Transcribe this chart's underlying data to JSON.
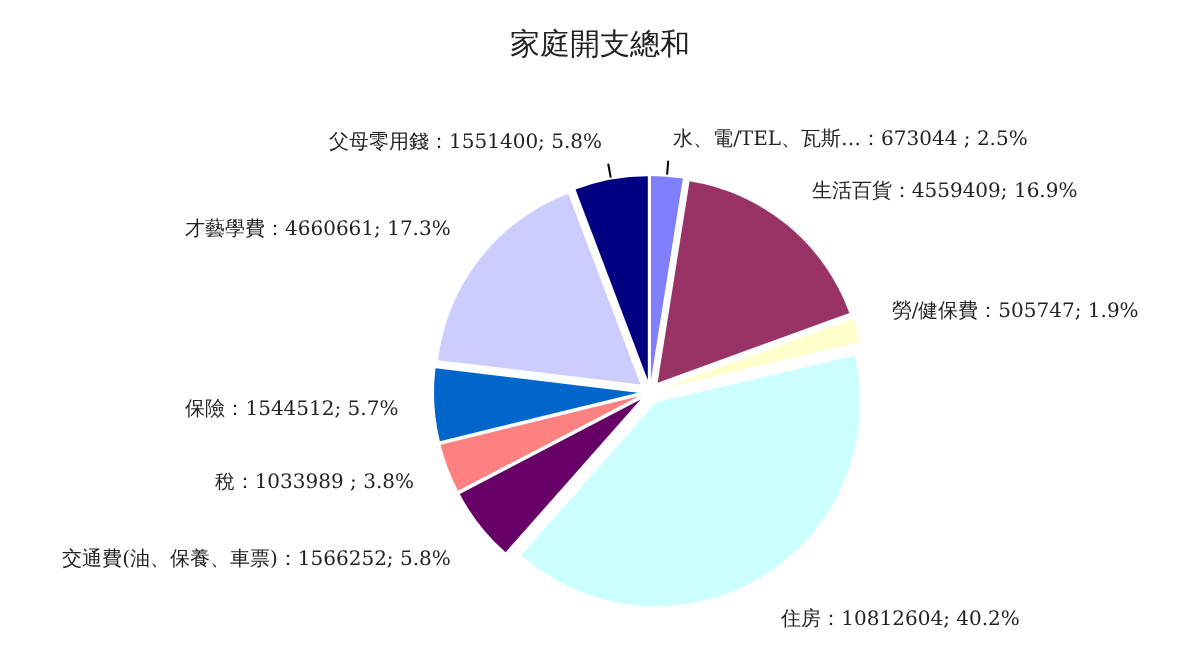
{
  "chart_data": {
    "type": "pie",
    "title": "家庭開支總和",
    "categories": [
      "水、電/TEL、瓦斯…",
      "生活百貨",
      "勞/健保費",
      "住房",
      "交通費(油、保養、車票)",
      "稅",
      "保險",
      "才藝學費",
      "父母零用錢"
    ],
    "values": [
      673044,
      4559409,
      505747,
      10812604,
      1566252,
      1033989,
      1544512,
      4660661,
      1551400
    ],
    "value_labels": [
      "673044 ; 2.5%",
      "4559409; 16.9%",
      "505747; 1.9%",
      "10812604; 40.2%",
      "1566252; 5.8%",
      "1033989 ; 3.8%",
      "1544512; 5.7%",
      "4660661; 17.3%",
      "1551400; 5.8%"
    ],
    "colors": [
      "#8080ff",
      "#993366",
      "#ffffcc",
      "#ccffff",
      "#660066",
      "#ff8080",
      "#0066cc",
      "#ccccff",
      "#000080"
    ]
  }
}
